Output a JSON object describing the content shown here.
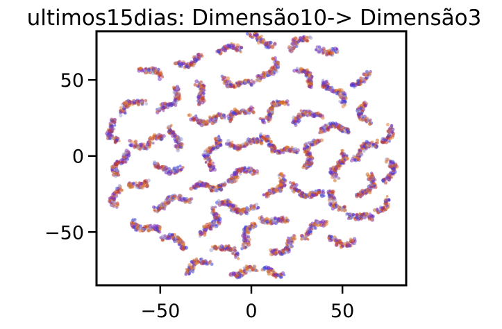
{
  "chart_data": {
    "type": "scatter",
    "title": "ultimos15dias: Dimensão10-> Dimensão3",
    "xlabel": "",
    "ylabel": "",
    "xlim": [
      -85,
      85
    ],
    "ylim": [
      -85,
      82
    ],
    "x_ticks": [
      {
        "value": -50,
        "label": "−50"
      },
      {
        "value": 0,
        "label": "0"
      },
      {
        "value": 50,
        "label": "50"
      }
    ],
    "y_ticks": [
      {
        "value": 50,
        "label": "50"
      },
      {
        "value": 0,
        "label": "0"
      },
      {
        "value": -50,
        "label": "−50"
      }
    ],
    "grid": false,
    "legend": "none",
    "point_colors": [
      "#7b2fbf",
      "#3d3dd8",
      "#d2691e",
      "#c0392b",
      "#8e44ad",
      "#e07b39",
      "#a0a0d0"
    ],
    "point_alpha": 0.55,
    "clusters": [
      {
        "x": -76,
        "y": 16,
        "len": 14,
        "angle": -70
      },
      {
        "x": -72,
        "y": -5,
        "len": 16,
        "angle": 80
      },
      {
        "x": -74,
        "y": -27,
        "len": 12,
        "angle": 90
      },
      {
        "x": -66,
        "y": 33,
        "len": 14,
        "angle": 40
      },
      {
        "x": -57,
        "y": 9,
        "len": 18,
        "angle": 10
      },
      {
        "x": -62,
        "y": -18,
        "len": 10,
        "angle": 30
      },
      {
        "x": -58,
        "y": -47,
        "len": 16,
        "angle": -30
      },
      {
        "x": -55,
        "y": 55,
        "len": 12,
        "angle": -40
      },
      {
        "x": -44,
        "y": 36,
        "len": 18,
        "angle": 60
      },
      {
        "x": -42,
        "y": 12,
        "len": 14,
        "angle": 90
      },
      {
        "x": -46,
        "y": -8,
        "len": 14,
        "angle": 0
      },
      {
        "x": -44,
        "y": -30,
        "len": 20,
        "angle": 20
      },
      {
        "x": -42,
        "y": -56,
        "len": 14,
        "angle": -20
      },
      {
        "x": -30,
        "y": -72,
        "len": 14,
        "angle": 30
      },
      {
        "x": -34,
        "y": 62,
        "len": 14,
        "angle": 20
      },
      {
        "x": -28,
        "y": 42,
        "len": 12,
        "angle": -60
      },
      {
        "x": -24,
        "y": 24,
        "len": 18,
        "angle": 0
      },
      {
        "x": -22,
        "y": 2,
        "len": 22,
        "angle": 80
      },
      {
        "x": -24,
        "y": -20,
        "len": 16,
        "angle": 10
      },
      {
        "x": -22,
        "y": -44,
        "len": 18,
        "angle": 70
      },
      {
        "x": -14,
        "y": -62,
        "len": 14,
        "angle": -30
      },
      {
        "x": -12,
        "y": 70,
        "len": 12,
        "angle": 10
      },
      {
        "x": -8,
        "y": 48,
        "len": 16,
        "angle": -20
      },
      {
        "x": -6,
        "y": 28,
        "len": 14,
        "angle": 40
      },
      {
        "x": -4,
        "y": 8,
        "len": 18,
        "angle": 0
      },
      {
        "x": -6,
        "y": -12,
        "len": 18,
        "angle": 20
      },
      {
        "x": -8,
        "y": -34,
        "len": 22,
        "angle": -10
      },
      {
        "x": -2,
        "y": -52,
        "len": 16,
        "angle": 60
      },
      {
        "x": -4,
        "y": -76,
        "len": 12,
        "angle": 0
      },
      {
        "x": 6,
        "y": 76,
        "len": 14,
        "angle": -10
      },
      {
        "x": 10,
        "y": 56,
        "len": 16,
        "angle": 60
      },
      {
        "x": 12,
        "y": 30,
        "len": 18,
        "angle": 40
      },
      {
        "x": 14,
        "y": 6,
        "len": 22,
        "angle": -30
      },
      {
        "x": 14,
        "y": -20,
        "len": 16,
        "angle": 60
      },
      {
        "x": 12,
        "y": -42,
        "len": 14,
        "angle": -20
      },
      {
        "x": 18,
        "y": -60,
        "len": 16,
        "angle": 40
      },
      {
        "x": 12,
        "y": -76,
        "len": 10,
        "angle": 0
      },
      {
        "x": 26,
        "y": 74,
        "len": 12,
        "angle": 30
      },
      {
        "x": 30,
        "y": 52,
        "len": 14,
        "angle": -50
      },
      {
        "x": 30,
        "y": 26,
        "len": 16,
        "angle": 20
      },
      {
        "x": 32,
        "y": 2,
        "len": 20,
        "angle": 70
      },
      {
        "x": 30,
        "y": -24,
        "len": 18,
        "angle": -20
      },
      {
        "x": 34,
        "y": -48,
        "len": 16,
        "angle": 30
      },
      {
        "x": 42,
        "y": 70,
        "len": 10,
        "angle": 0
      },
      {
        "x": 46,
        "y": 42,
        "len": 18,
        "angle": -60
      },
      {
        "x": 46,
        "y": 18,
        "len": 16,
        "angle": 10
      },
      {
        "x": 48,
        "y": -6,
        "len": 18,
        "angle": 80
      },
      {
        "x": 46,
        "y": -30,
        "len": 14,
        "angle": -40
      },
      {
        "x": 50,
        "y": -56,
        "len": 14,
        "angle": 0
      },
      {
        "x": 60,
        "y": 50,
        "len": 12,
        "angle": 20
      },
      {
        "x": 62,
        "y": 28,
        "len": 14,
        "angle": -80
      },
      {
        "x": 62,
        "y": 4,
        "len": 16,
        "angle": 30
      },
      {
        "x": 64,
        "y": -20,
        "len": 16,
        "angle": 70
      },
      {
        "x": 60,
        "y": -40,
        "len": 12,
        "angle": -30
      },
      {
        "x": 74,
        "y": 14,
        "len": 12,
        "angle": 60
      },
      {
        "x": 76,
        "y": -10,
        "len": 14,
        "angle": 90
      },
      {
        "x": 72,
        "y": -32,
        "len": 10,
        "angle": 40
      }
    ]
  }
}
